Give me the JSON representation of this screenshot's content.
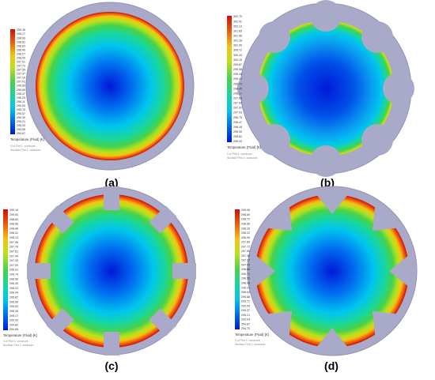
{
  "panels": [
    {
      "label": "(a)",
      "shape": "plain",
      "legend_values": [
        "299.35",
        "299.17",
        "298.99",
        "298.81",
        "298.63",
        "298.45",
        "298.27",
        "298.09",
        "297.91",
        "297.73",
        "297.55",
        "297.37",
        "297.19",
        "297.01",
        "296.83",
        "296.65",
        "296.47",
        "296.29",
        "296.11",
        "295.93",
        "295.75",
        "295.57",
        "295.39",
        "295.21",
        "295.03",
        "294.85",
        "294.67"
      ],
      "legend_title": "Temperature (Fluid) [K]",
      "caption_line1": "Cut Plot 1: contours",
      "caption_line2": "Surface Plot 1: contours"
    },
    {
      "label": "(b)",
      "shape": "semicircle-fins",
      "legend_values": [
        "302.70",
        "302.41",
        "302.13",
        "301.85",
        "301.56",
        "301.28",
        "301.00",
        "300.72",
        "300.43",
        "300.15",
        "299.87",
        "299.58",
        "299.30",
        "299.02",
        "298.73",
        "298.45",
        "298.17",
        "297.88",
        "297.60",
        "297.32",
        "297.03",
        "296.75",
        "296.47",
        "296.18",
        "295.90",
        "295.62",
        "295.33"
      ],
      "legend_title": "Temperature (Fluid) [K]",
      "caption_line1": "Cut Plot 1: contours",
      "caption_line2": "Surface Plot 1: contours"
    },
    {
      "label": "(c)",
      "shape": "rectangular-fins",
      "legend_values": [
        "299.18",
        "299.00",
        "298.83",
        "298.66",
        "298.48",
        "298.31",
        "298.13",
        "297.96",
        "297.78",
        "297.61",
        "297.44",
        "297.26",
        "297.09",
        "296.91",
        "296.74",
        "296.56",
        "296.39",
        "296.22",
        "296.04",
        "295.87",
        "295.69",
        "295.52",
        "295.35",
        "295.17",
        "295.00",
        "294.82",
        "294.65"
      ],
      "legend_title": "Temperature (Fluid) [K]",
      "caption_line1": "Cut Plot 1: contours",
      "caption_line2": "Surface Plot 1: contours"
    },
    {
      "label": "(d)",
      "shape": "triangular-fins",
      "legend_values": [
        "299.06",
        "298.89",
        "298.72",
        "298.56",
        "298.39",
        "298.22",
        "298.05",
        "297.89",
        "297.72",
        "297.55",
        "297.38",
        "297.22",
        "297.05",
        "296.88",
        "296.71",
        "296.55",
        "296.38",
        "296.21",
        "296.04",
        "295.88",
        "295.71",
        "295.54",
        "295.37",
        "295.21",
        "295.04",
        "294.87",
        "294.70"
      ],
      "legend_title": "Temperature (Fluid) [K]",
      "caption_line1": "Cut Plot 1: contours",
      "caption_line2": "Surface Plot 1: contours"
    }
  ],
  "colors": {
    "solid": "#a9aac9",
    "solid_edge": "#9293b3",
    "scale": [
      "#0019d8",
      "#006ff0",
      "#00c6ee",
      "#19d79a",
      "#49d24a",
      "#b6e21d",
      "#f2c514",
      "#ee5a0c",
      "#d01006"
    ]
  }
}
